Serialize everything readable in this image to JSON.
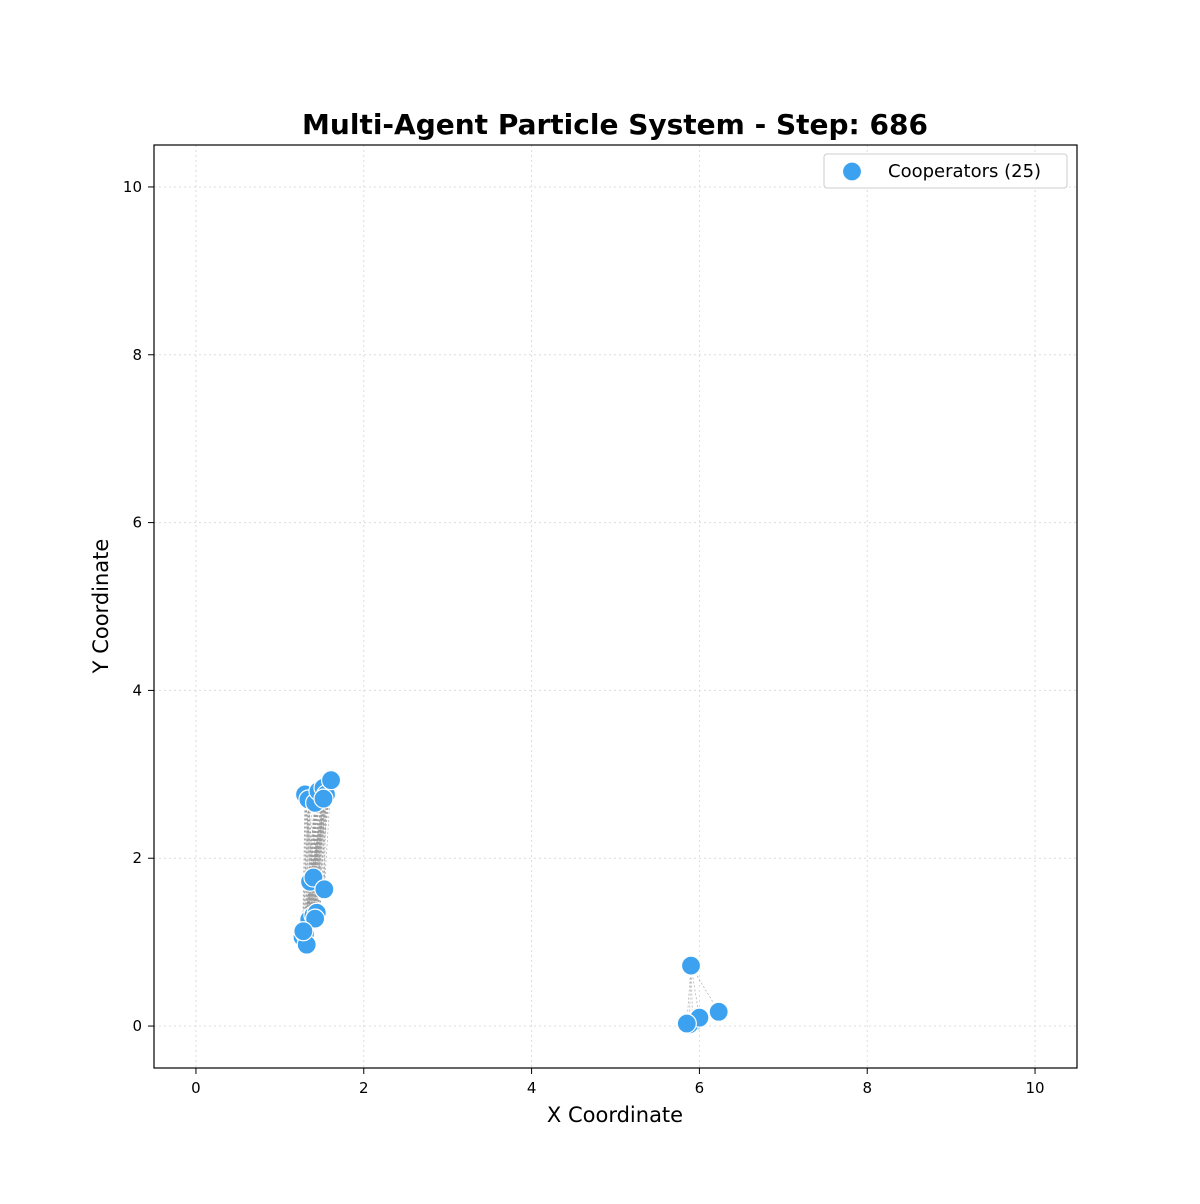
{
  "chart_data": {
    "type": "scatter",
    "title": "Multi-Agent Particle System - Step: 686",
    "xlabel": "X Coordinate",
    "ylabel": "Y Coordinate",
    "xlim": [
      -0.5,
      10.5
    ],
    "ylim": [
      -0.5,
      10.5
    ],
    "xticks": [
      0,
      2,
      4,
      6,
      8,
      10
    ],
    "yticks": [
      0,
      2,
      4,
      6,
      8,
      10
    ],
    "grid": true,
    "legend": {
      "placement": "top-right",
      "entries": [
        "Cooperators (25)"
      ]
    },
    "colors": {
      "cooperator": "#3ca2f0",
      "edge": "#9a9a9a",
      "grid": "#dcdcdc"
    },
    "series": [
      {
        "name": "Cooperators (25)",
        "points": [
          {
            "x": 1.3,
            "y": 2.76
          },
          {
            "x": 1.34,
            "y": 2.7
          },
          {
            "x": 1.42,
            "y": 2.66
          },
          {
            "x": 1.46,
            "y": 2.8
          },
          {
            "x": 1.52,
            "y": 2.84
          },
          {
            "x": 1.55,
            "y": 2.76
          },
          {
            "x": 1.52,
            "y": 2.71
          },
          {
            "x": 1.61,
            "y": 2.93
          },
          {
            "x": 1.36,
            "y": 1.72
          },
          {
            "x": 1.4,
            "y": 1.77
          },
          {
            "x": 1.53,
            "y": 1.63
          },
          {
            "x": 1.35,
            "y": 1.27
          },
          {
            "x": 1.4,
            "y": 1.32
          },
          {
            "x": 1.44,
            "y": 1.35
          },
          {
            "x": 1.42,
            "y": 1.28
          },
          {
            "x": 1.27,
            "y": 1.06
          },
          {
            "x": 1.3,
            "y": 1.1
          },
          {
            "x": 1.32,
            "y": 0.97
          },
          {
            "x": 1.28,
            "y": 1.13
          },
          {
            "x": 5.9,
            "y": 0.72
          },
          {
            "x": 5.92,
            "y": 0.04
          },
          {
            "x": 5.88,
            "y": 0.02
          },
          {
            "x": 6.0,
            "y": 0.1
          },
          {
            "x": 5.85,
            "y": 0.03
          },
          {
            "x": 6.23,
            "y": 0.17
          }
        ]
      }
    ]
  }
}
